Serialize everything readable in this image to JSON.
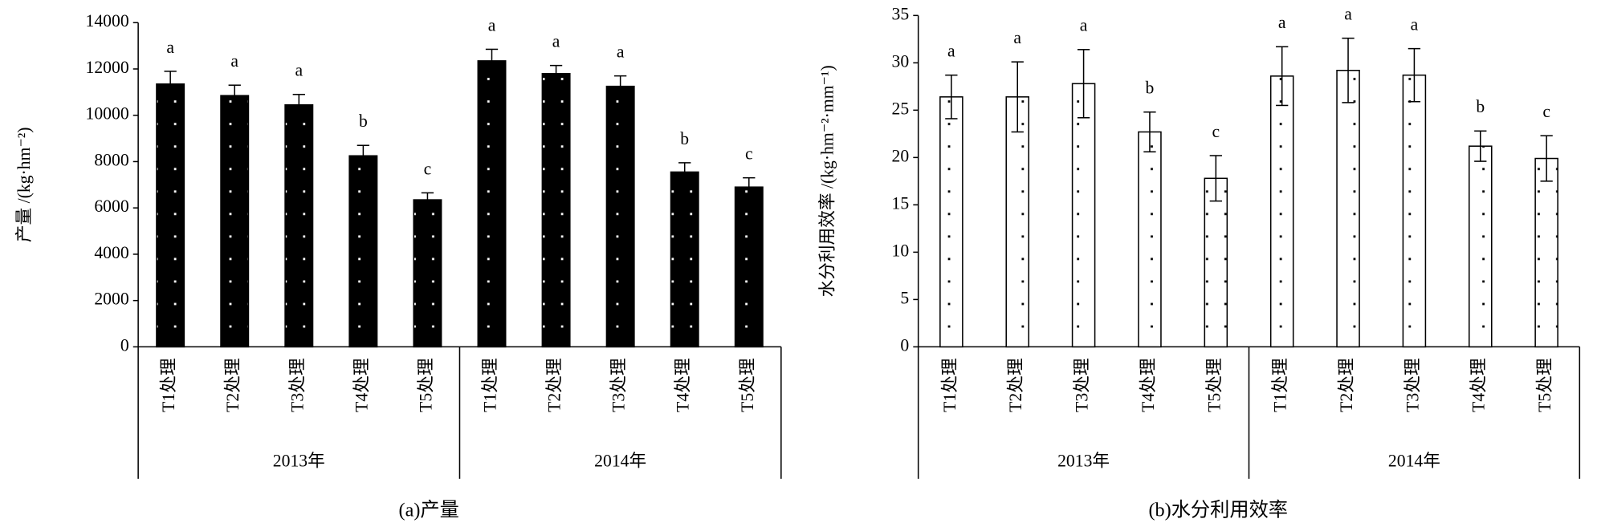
{
  "chart_data": [
    {
      "type": "bar",
      "caption": "(a)产量",
      "ylabel": "产量 /(kg·hm⁻²)",
      "color": "#000000",
      "categories": [
        "T1处理",
        "T2处理",
        "T3处理",
        "T4处理",
        "T5处理",
        "T1处理",
        "T2处理",
        "T3处理",
        "T4处理",
        "T5处理"
      ],
      "groups": [
        "2013年",
        "2014年"
      ],
      "values": [
        11350,
        10850,
        10450,
        8250,
        6350,
        12350,
        11800,
        11250,
        7550,
        6900
      ],
      "errors": [
        550,
        450,
        450,
        450,
        300,
        500,
        350,
        450,
        400,
        400
      ],
      "letters": [
        "a",
        "a",
        "a",
        "b",
        "c",
        "a",
        "a",
        "a",
        "b",
        "c"
      ],
      "ylim": [
        0,
        14000
      ],
      "yticks": [
        0,
        2000,
        4000,
        6000,
        8000,
        10000,
        12000,
        14000
      ]
    },
    {
      "type": "bar",
      "caption": "(b)水分利用效率",
      "ylabel": "水分利用效率 /(kg·hm⁻²·mm⁻¹)",
      "color": "#ffffff",
      "categories": [
        "T1处理",
        "T2处理",
        "T3处理",
        "T4处理",
        "T5处理",
        "T1处理",
        "T2处理",
        "T3处理",
        "T4处理",
        "T5处理"
      ],
      "groups": [
        "2013年",
        "2014年"
      ],
      "values": [
        26.4,
        26.4,
        27.8,
        22.7,
        17.8,
        28.6,
        29.2,
        28.7,
        21.2,
        19.9
      ],
      "errors": [
        2.3,
        3.7,
        3.6,
        2.1,
        2.4,
        3.1,
        3.4,
        2.8,
        1.6,
        2.4
      ],
      "letters": [
        "a",
        "a",
        "a",
        "b",
        "c",
        "a",
        "a",
        "a",
        "b",
        "c"
      ],
      "ylim": [
        0,
        35
      ],
      "yticks": [
        0,
        5,
        10,
        15,
        20,
        25,
        30,
        35
      ]
    }
  ]
}
